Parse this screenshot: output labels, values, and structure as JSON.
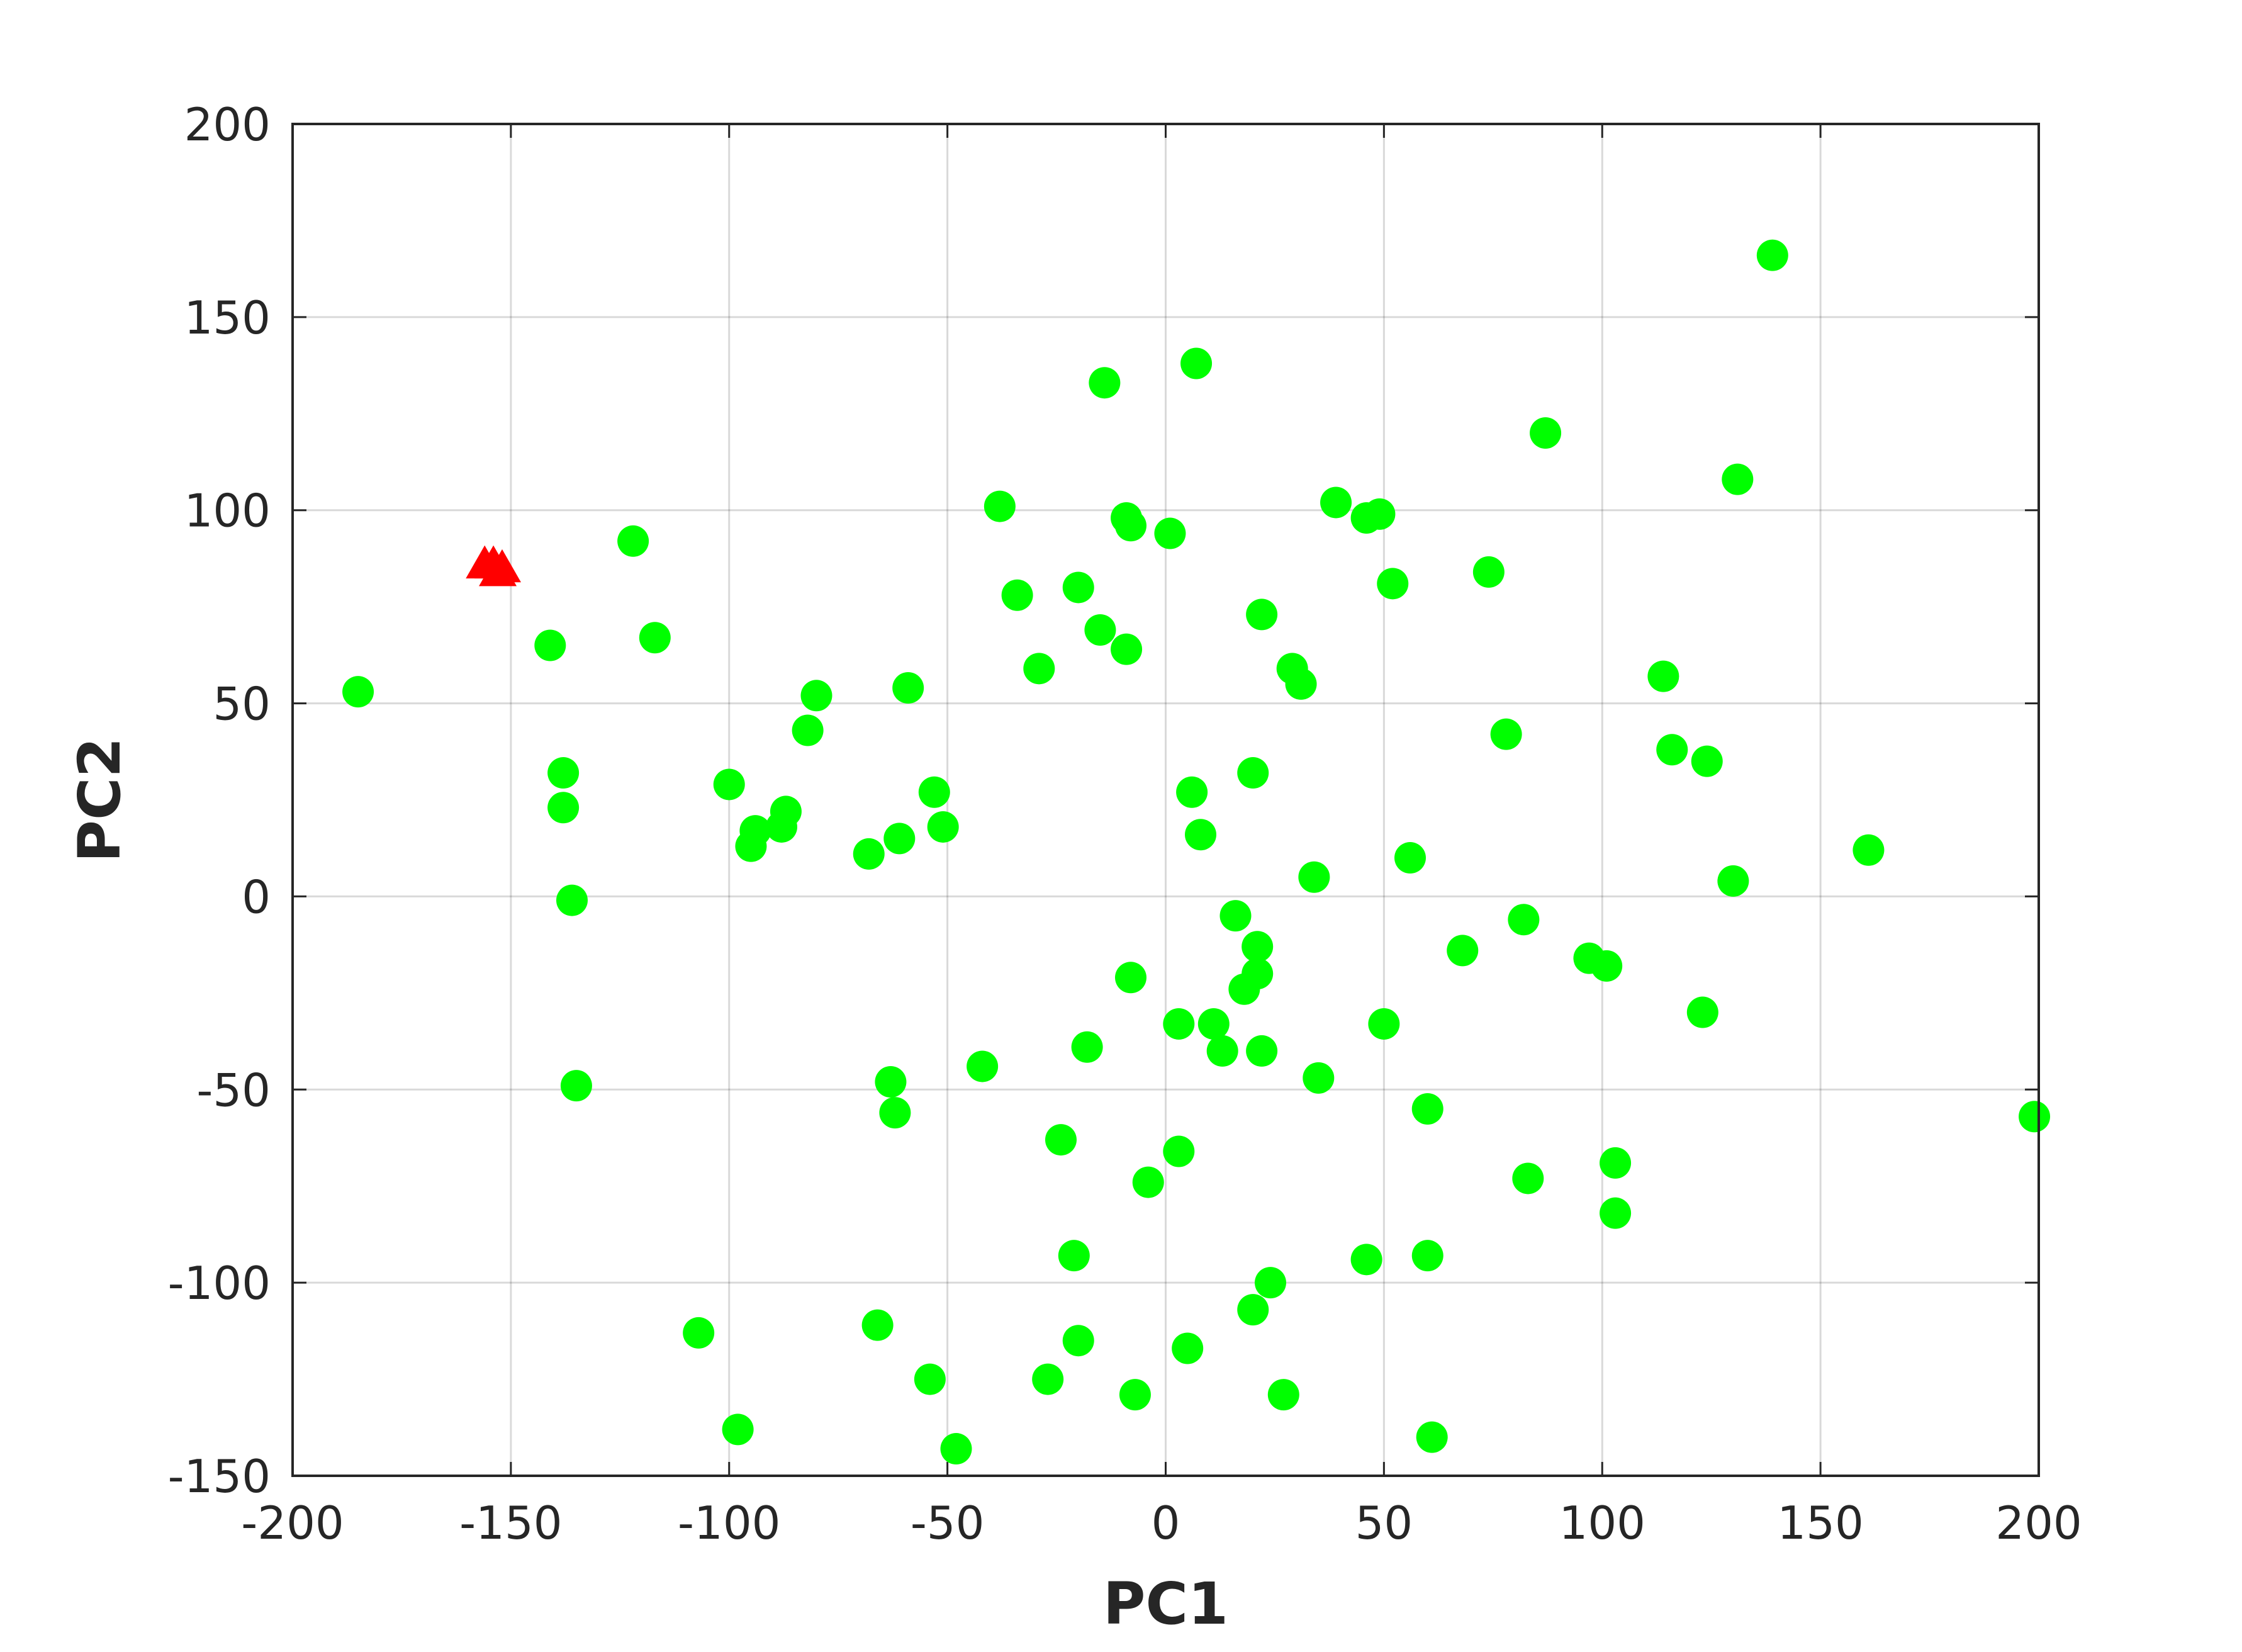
{
  "chart_data": {
    "type": "scatter",
    "title": "",
    "xlabel": "PC1",
    "ylabel": "PC2",
    "xlim": [
      -200,
      200
    ],
    "ylim": [
      -150,
      200
    ],
    "grid": true,
    "xticks": [
      -200,
      -150,
      -100,
      -50,
      0,
      50,
      100,
      150,
      200
    ],
    "yticks": [
      -150,
      -100,
      -50,
      0,
      50,
      100,
      150,
      200
    ],
    "series": [
      {
        "marker": "circle",
        "color": "#00ff00",
        "points": [
          [
            -185,
            53
          ],
          [
            -141,
            65
          ],
          [
            -138,
            32
          ],
          [
            -138,
            23
          ],
          [
            -136,
            -1
          ],
          [
            -135,
            -49
          ],
          [
            -122,
            92
          ],
          [
            -117,
            67
          ],
          [
            -107,
            -113
          ],
          [
            -100,
            29
          ],
          [
            -98,
            -138
          ],
          [
            -94,
            17
          ],
          [
            -95,
            13
          ],
          [
            -88,
            18
          ],
          [
            -87,
            22
          ],
          [
            -82,
            43
          ],
          [
            -80,
            52
          ],
          [
            -68,
            11
          ],
          [
            -66,
            -111
          ],
          [
            -63,
            -48
          ],
          [
            -62,
            -56
          ],
          [
            -61,
            15
          ],
          [
            -59,
            54
          ],
          [
            -54,
            -125
          ],
          [
            -53,
            27
          ],
          [
            -51,
            18
          ],
          [
            -48,
            -143
          ],
          [
            -42,
            -44
          ],
          [
            -38,
            101
          ],
          [
            -34,
            78
          ],
          [
            -29,
            59
          ],
          [
            -27,
            -125
          ],
          [
            -24,
            -63
          ],
          [
            -21,
            -93
          ],
          [
            -20,
            80
          ],
          [
            -20,
            -115
          ],
          [
            -18,
            -39
          ],
          [
            -15,
            69
          ],
          [
            -14,
            133
          ],
          [
            -9,
            98
          ],
          [
            -9,
            64
          ],
          [
            -8,
            96
          ],
          [
            -8,
            -21
          ],
          [
            -7,
            -129
          ],
          [
            -4,
            -74
          ],
          [
            1,
            94
          ],
          [
            3,
            -33
          ],
          [
            3,
            -66
          ],
          [
            5,
            -117
          ],
          [
            6,
            27
          ],
          [
            7,
            138
          ],
          [
            8,
            16
          ],
          [
            11,
            -33
          ],
          [
            13,
            -40
          ],
          [
            16,
            -5
          ],
          [
            18,
            -24
          ],
          [
            20,
            -107
          ],
          [
            20,
            32
          ],
          [
            21,
            -13
          ],
          [
            21,
            -20
          ],
          [
            22,
            73
          ],
          [
            22,
            -40
          ],
          [
            24,
            -100
          ],
          [
            27,
            -129
          ],
          [
            29,
            59
          ],
          [
            31,
            55
          ],
          [
            34,
            5
          ],
          [
            35,
            -47
          ],
          [
            39,
            102
          ],
          [
            46,
            98
          ],
          [
            46,
            -94
          ],
          [
            49,
            99
          ],
          [
            50,
            -33
          ],
          [
            52,
            81
          ],
          [
            56,
            10
          ],
          [
            60,
            -55
          ],
          [
            60,
            -93
          ],
          [
            61,
            -140
          ],
          [
            68,
            -14
          ],
          [
            74,
            84
          ],
          [
            78,
            42
          ],
          [
            82,
            -6
          ],
          [
            83,
            -73
          ],
          [
            87,
            120
          ],
          [
            97,
            -16
          ],
          [
            101,
            -18
          ],
          [
            103,
            -69
          ],
          [
            103,
            -82
          ],
          [
            114,
            57
          ],
          [
            116,
            38
          ],
          [
            123,
            -30
          ],
          [
            124,
            35
          ],
          [
            130,
            4
          ],
          [
            131,
            108
          ],
          [
            139,
            166
          ],
          [
            161,
            12
          ],
          [
            199,
            -57
          ]
        ]
      },
      {
        "marker": "triangle",
        "color": "#ff0000",
        "points": [
          [
            -156,
            86
          ],
          [
            -154,
            86
          ],
          [
            -152,
            85
          ],
          [
            -153,
            84
          ]
        ]
      }
    ]
  }
}
